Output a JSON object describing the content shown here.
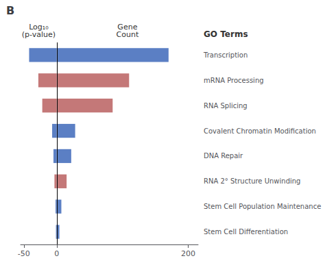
{
  "chart_data": {
    "type": "bar",
    "title": "B",
    "orientation": "horizontal",
    "ylabel": "GO Terms",
    "categories": [
      "Transcription",
      "mRNA Processing",
      "RNA Splicing",
      "Covalent Chromatin Modification",
      "DNA Repair",
      "RNA 2° Structure Unwinding",
      "Stem Cell Population Maintenance",
      "Stem Cell Differentiation"
    ],
    "series": [
      {
        "name": "Log₁₀\n(p-value)",
        "values": [
          -42,
          -28,
          -22,
          -7,
          -5,
          -3.5,
          -1.8,
          -1.2
        ],
        "colors": [
          "#5b7fc4",
          "#c47878",
          "#c47878",
          "#5b7fc4",
          "#5b7fc4",
          "#c47878",
          "#5b7fc4",
          "#5b7fc4"
        ]
      },
      {
        "name": "Gene\nCount",
        "values": [
          170,
          110,
          85,
          28,
          22,
          15,
          7,
          4
        ],
        "colors": [
          "#5b7fc4",
          "#c47878",
          "#c47878",
          "#5b7fc4",
          "#5b7fc4",
          "#c47878",
          "#5b7fc4",
          "#5b7fc4"
        ]
      }
    ],
    "xlim": [
      -55,
      215
    ],
    "xticks": [
      -50,
      0,
      200
    ],
    "grid": false
  }
}
